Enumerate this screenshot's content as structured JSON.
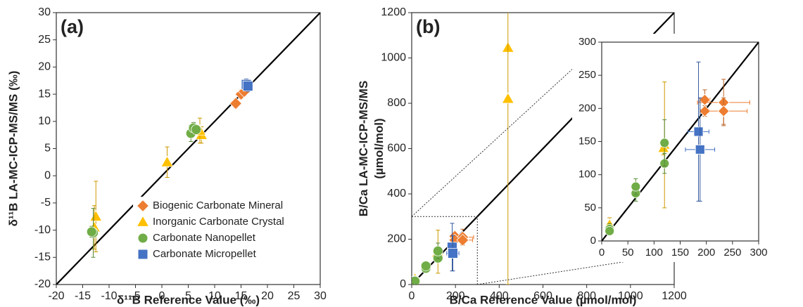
{
  "chart_data": [
    {
      "type": "scatter",
      "label": "(a)",
      "x_label": "δ¹¹B Reference Value (‰)",
      "y_label": "δ¹¹B LA-MC-ICP-MS/MS (‰)",
      "xlim": [
        -20,
        30
      ],
      "ylim": [
        -20,
        30
      ],
      "xticks": [
        -20,
        -15,
        -10,
        -5,
        0,
        5,
        10,
        15,
        20,
        25,
        30
      ],
      "yticks": [
        -20,
        -15,
        -10,
        -5,
        0,
        5,
        10,
        15,
        20,
        25,
        30
      ],
      "legend": "lower right",
      "series": [
        {
          "name": "Biogenic Carbonate Mineral",
          "color": "#ed7d31",
          "marker": "diamond",
          "x": [
            14,
            15,
            15.6
          ],
          "y": [
            13.3,
            15,
            15.5
          ],
          "yerr": [
            0.8,
            0.8,
            0.8
          ]
        },
        {
          "name": "Inorganic Carbonate Crystal",
          "color": "#ffc000",
          "marker": "triangle",
          "x": [
            -12.5,
            -12.8,
            1,
            7.5,
            7.2
          ],
          "y": [
            -7.5,
            -9.5,
            2.5,
            7.5,
            8.3
          ],
          "yerr": [
            6.5,
            4,
            2.8,
            1.5,
            2.3
          ]
        },
        {
          "name": "Carbonate Nanopellet",
          "color": "#70ad47",
          "marker": "circle",
          "x": [
            -13,
            -13.3,
            5.5,
            6,
            6.5
          ],
          "y": [
            -10.5,
            -10.3,
            7.8,
            8.8,
            8.5
          ],
          "yerr": [
            4.5,
            1,
            1.5,
            1,
            0.8
          ]
        },
        {
          "name": "Carbonate Micropellet",
          "color": "#4472c4",
          "marker": "square",
          "x": [
            16,
            16.3
          ],
          "y": [
            16.8,
            16.5
          ],
          "yerr": [
            1,
            1
          ]
        }
      ]
    },
    {
      "type": "scatter",
      "label": "(b)",
      "x_label": "B/Ca Reference Value (µmol/mol)",
      "y_label": [
        "B/Ca LA-MC-ICP-MS/MS",
        "(µmol/mol)"
      ],
      "xlim": [
        0,
        1200
      ],
      "ylim": [
        0,
        1200
      ],
      "xticks": [
        0,
        200,
        400,
        600,
        800,
        1000,
        1200
      ],
      "yticks": [
        0,
        200,
        400,
        600,
        800,
        1000,
        1200
      ],
      "series": [
        {
          "color": "#ed7d31",
          "marker": "diamond",
          "x": [
            197,
            233,
            197,
            233
          ],
          "y": [
            213,
            209,
            196,
            196
          ],
          "xerr": [
            10,
            50,
            8,
            45
          ],
          "yerr": [
            15,
            35,
            8,
            20
          ]
        },
        {
          "color": "#ffc000",
          "marker": "triangle",
          "x": [
            440,
            440,
            15,
            120,
            118
          ],
          "y": [
            1045,
            820,
            25,
            145,
            140
          ],
          "yerr": [
            10,
            820,
            10,
            95,
            10
          ]
        },
        {
          "color": "#70ad47",
          "marker": "circle",
          "x": [
            15,
            15,
            65,
            65,
            120,
            120
          ],
          "y": [
            18,
            15,
            72,
            82,
            117,
            148
          ],
          "yerr": [
            8,
            5,
            12,
            12,
            15,
            35
          ]
        },
        {
          "color": "#4472c4",
          "marker": "square",
          "x": [
            185,
            188
          ],
          "y": [
            165,
            138
          ],
          "xerr": [
            20,
            28
          ],
          "yerr": [
            105,
            78
          ]
        }
      ],
      "inset": {
        "xlim": [
          0,
          300
        ],
        "ylim": [
          0,
          300
        ],
        "xticks": [
          0,
          50,
          100,
          150,
          200,
          250,
          300
        ],
        "yticks": [
          0,
          50,
          100,
          150,
          200,
          250,
          300
        ]
      }
    }
  ]
}
